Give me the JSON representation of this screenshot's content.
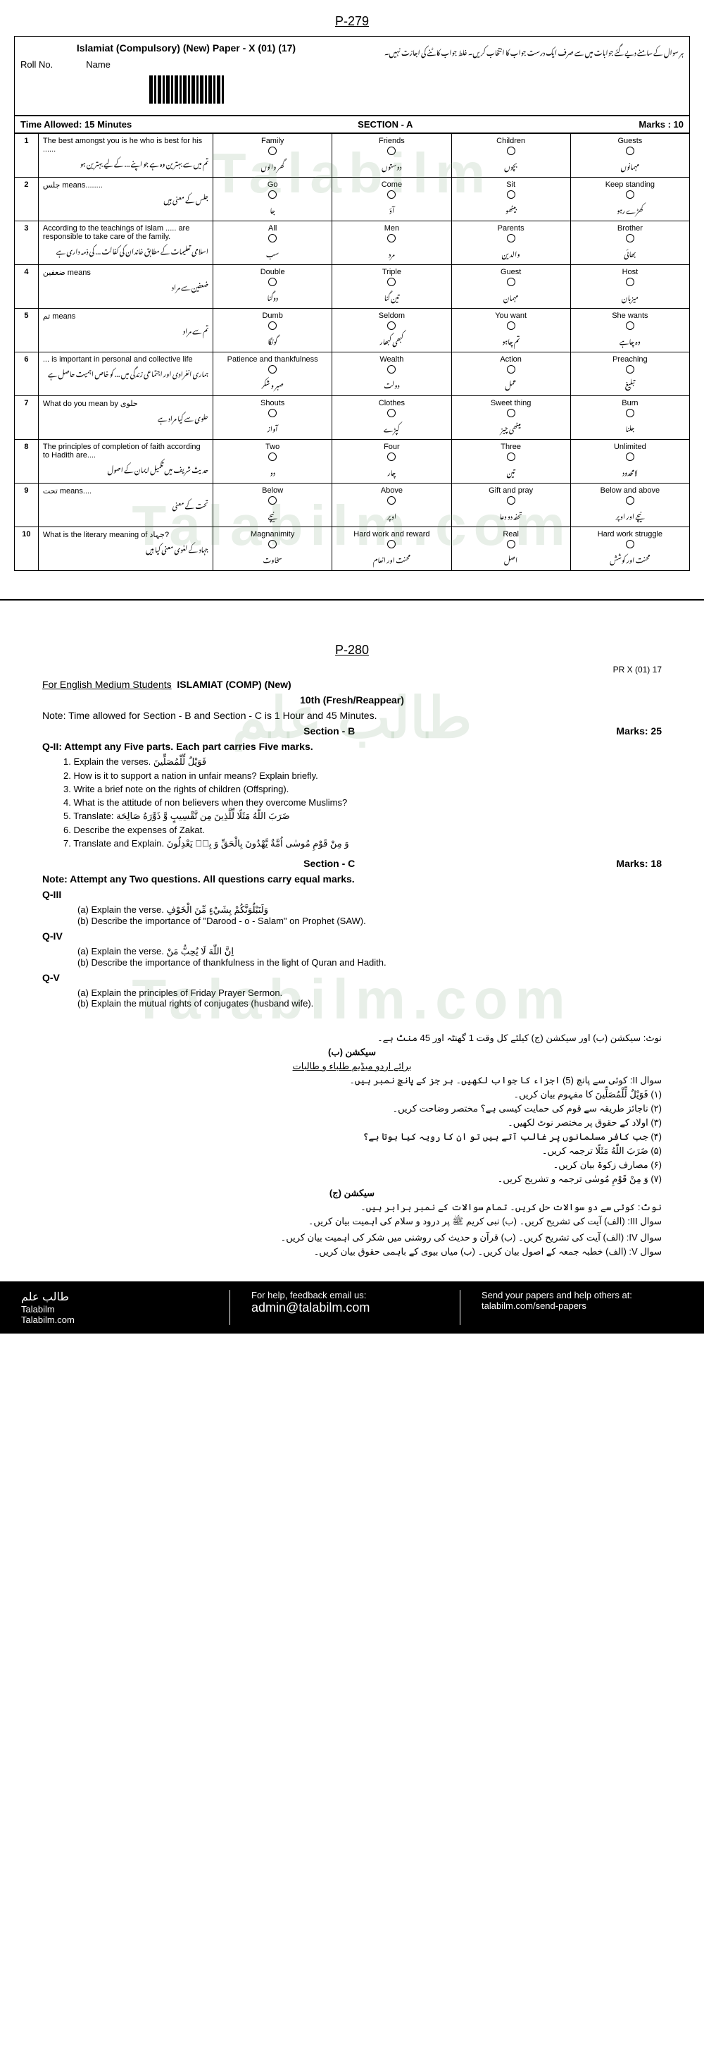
{
  "page1": {
    "page_num": "P-279",
    "title": "Islamiat (Compulsory) (New) Paper - X (01) (17)",
    "roll_label": "Roll No.",
    "name_label": "Name",
    "urdu_instructions": "ہر سوال کے سامنے دیے گئے جوابات میں سے صرف ایک درست جواب کا انتخاب کریں۔ غلط جواب کاٹنے کی اجازت نہیں۔",
    "time_label": "Time Allowed: 15 Minutes",
    "section_label": "SECTION - A",
    "marks_label": "Marks : 10",
    "questions": [
      {
        "n": "1",
        "text": "The best amongst you is he who is best for his ......",
        "urdu": "تم میں سے بہترین وہ ہے جو اپنے ... کے لیے بہترین ہو",
        "opts": [
          "Family",
          "Friends",
          "Children",
          "Guests"
        ],
        "opts_u": [
          "گھر والوں",
          "دوستوں",
          "بچوں",
          "مہمانوں"
        ]
      },
      {
        "n": "2",
        "text": "جلس means........",
        "urdu": "جلس کے معنی ہیں",
        "opts": [
          "Go",
          "Come",
          "Sit",
          "Keep standing"
        ],
        "opts_u": [
          "جا",
          "آؤ",
          "بیٹھو",
          "کھڑے رہو"
        ]
      },
      {
        "n": "3",
        "text": "According to the teachings of Islam ..... are responsible to take care of the family.",
        "urdu": "اسلامی تعلیمات کے مطابق خاندان کی کفالت ... کی ذمہ داری ہے",
        "opts": [
          "All",
          "Men",
          "Parents",
          "Brother"
        ],
        "opts_u": [
          "سب",
          "مرد",
          "والدین",
          "بھائی"
        ]
      },
      {
        "n": "4",
        "text": "ضعفین means",
        "urdu": "ضعفین سے مراد",
        "opts": [
          "Double",
          "Triple",
          "Guest",
          "Host"
        ],
        "opts_u": [
          "دوگنا",
          "تین گنا",
          "مہمان",
          "میزبان"
        ]
      },
      {
        "n": "5",
        "text": "تم means",
        "urdu": "تم سے مراد",
        "opts": [
          "Dumb",
          "Seldom",
          "You want",
          "She wants"
        ],
        "opts_u": [
          "گونگا",
          "کبھی کبھار",
          "تم چاہو",
          "وہ چاہے"
        ]
      },
      {
        "n": "6",
        "text": "... is important in personal and collective life",
        "urdu": "ہماری انفرادی اور اجتماعی زندگی میں ... کو خاص اہمیت حاصل ہے",
        "opts": [
          "Patience and thankfulness",
          "Wealth",
          "Action",
          "Preaching"
        ],
        "opts_u": [
          "صبر و شکر",
          "دولت",
          "عمل",
          "تبلیغ"
        ]
      },
      {
        "n": "7",
        "text": "What do you mean by حلوی",
        "urdu": "حلوی سے کیا مراد ہے",
        "opts": [
          "Shouts",
          "Clothes",
          "Sweet thing",
          "Burn"
        ],
        "opts_u": [
          "آواز",
          "کپڑے",
          "میٹھی چیز",
          "جلنا"
        ]
      },
      {
        "n": "8",
        "text": "The principles of completion of faith according to Hadith are....",
        "urdu": "حدیث شریف میں تکمیل ایمان کے اصول",
        "opts": [
          "Two",
          "Four",
          "Three",
          "Unlimited"
        ],
        "opts_u": [
          "دو",
          "چار",
          "تین",
          "لامحدود"
        ]
      },
      {
        "n": "9",
        "text": "تحت means....",
        "urdu": "تحت کے معنی",
        "opts": [
          "Below",
          "Above",
          "Gift and pray",
          "Below and above"
        ],
        "opts_u": [
          "نیچے",
          "اوپر",
          "تحفہ دو دعا",
          "نیچے اور اوپر"
        ]
      },
      {
        "n": "10",
        "text": "What is the literary meaning of جہاد?",
        "urdu": "جہاد کے لغوی معنی کیا ہیں",
        "opts": [
          "Magnanimity",
          "Hard work and reward",
          "Real",
          "Hard work struggle"
        ],
        "opts_u": [
          "سخاوت",
          "محنت اور انعام",
          "اصل",
          "محنت اور کوشش"
        ]
      }
    ]
  },
  "page2": {
    "page_num": "P-280",
    "pr": "PR X (01) 17",
    "for_label": "For English Medium Students",
    "title": "ISLAMIAT (COMP) (New)",
    "class": "10th (Fresh/Reappear)",
    "note": "Note: Time allowed for Section - B and Section - C is 1 Hour and 45 Minutes.",
    "section_b": "Section - B",
    "marks_b": "Marks: 25",
    "qii": "Q-II: Attempt any Five parts. Each part carries Five marks.",
    "qii_parts": [
      "Explain the verses. فَوَيْلٌ لِّلْمُصَلِّينَ",
      "How is it to support a nation in unfair means? Explain briefly.",
      "Write a brief note on the rights of children (Offspring).",
      "What is the attitude of non believers when they overcome Muslims?",
      "Translate: ضَرَبَ اللّٰهُ مَثَلًا لِّلَّذِينَ مِن تَّقْسِيبٍ وَّ ذَوَّرَهُ صَالِحَة",
      "Describe the expenses of Zakat.",
      "Translate and Explain. وَ مِنْ قَوْمِ مُوسٰى اُمَّةٌ يَّهْدُونَ بِالْحَقِّ وَ بِهٖ يَعْدِلُونَ"
    ],
    "section_c": "Section - C",
    "marks_c": "Marks: 18",
    "note_c": "Note: Attempt any Two questions. All questions carry equal marks.",
    "qiii": {
      "label": "Q-III",
      "a": "(a) Explain the verse. وَلَنَبْلُوَنَّكُمْ بِشَيْءٍ مِّنَ الْخَوْفِ",
      "b": "(b) Describe the importance of \"Darood - o - Salam\" on Prophet (SAW)."
    },
    "qiv": {
      "label": "Q-IV",
      "a": "(a) Explain the verse. اِنَّ اللّٰهَ لَا يُحِبُّ مَنْ",
      "b": "(b) Describe the importance of thankfulness in the light of Quran and Hadith."
    },
    "qv": {
      "label": "Q-V",
      "a": "(a) Explain the principles of Friday Prayer Sermon.",
      "b": "(b) Explain the mutual rights of conjugates (husband wife)."
    },
    "urdu_note": "نوٹ: سیکشن (ب) اور سیکشن (ج) کیلئے کل وقت 1 گھنٹہ اور 45 منٹ ہے۔",
    "urdu_sec_b": "سیکشن (ب)",
    "urdu_medium": "برائے اردو میڈیم طلباء و طالبات",
    "urdu_qii": "سوال II: کوئی سے پانچ (5) اجزاء کا جواب لکھیں۔ ہر جز کے پانچ نمبر ہیں۔",
    "urdu_parts": [
      "(۱) فَوَيْلٌ لِّلْمُصَلِّينَ کا مفہوم بیان کریں۔",
      "(۲) ناجائز طریقہ سے قوم کی حمایت کیسی ہے؟ مختصر وضاحت کریں۔",
      "(۳) اولاد کے حقوق پر مختصر نوٹ لکھیں۔",
      "(۴) جب کافر مسلمانوں پر غالب آتے ہیں تو ان کا رویہ کیا ہوتا ہے؟",
      "(۵) ضَرَبَ اللّٰهُ مَثَلًا ترجمہ کریں۔",
      "(۶) مصارف زکوۃ بیان کریں۔",
      "(۷) وَ مِنْ قَوْمِ مُوسٰى ترجمہ و تشریح کریں۔"
    ],
    "urdu_sec_c": "سیکشن (ج)",
    "urdu_note_c": "نوٹ: کوئی سے دو سوالات حل کریں۔ تمام سوالات کے نمبر برابر ہیں۔",
    "urdu_qiii": "سوال III: (الف) آیت کی تشریح کریں۔ (ب) نبی کریم ﷺ پر درود و سلام کی اہمیت بیان کریں۔",
    "urdu_qiv": "سوال IV: (الف) آیت کی تشریح کریں۔ (ب) قرآن و حدیث کی روشنی میں شکر کی اہمیت بیان کریں۔",
    "urdu_qv": "سوال V: (الف) خطبہ جمعہ کے اصول بیان کریں۔ (ب) میاں بیوی کے باہمی حقوق بیان کریں۔"
  },
  "footer": {
    "col1_u": "طالب علم",
    "col1_a": "Talabilm",
    "col1_b": "Talabilm.com",
    "col2_a": "For help, feedback email us:",
    "col2_b": "admin@talabilm.com",
    "col3_a": "Send your papers and help others at:",
    "col3_b": "talabilm.com/send-papers"
  },
  "watermark": "Talabilm"
}
